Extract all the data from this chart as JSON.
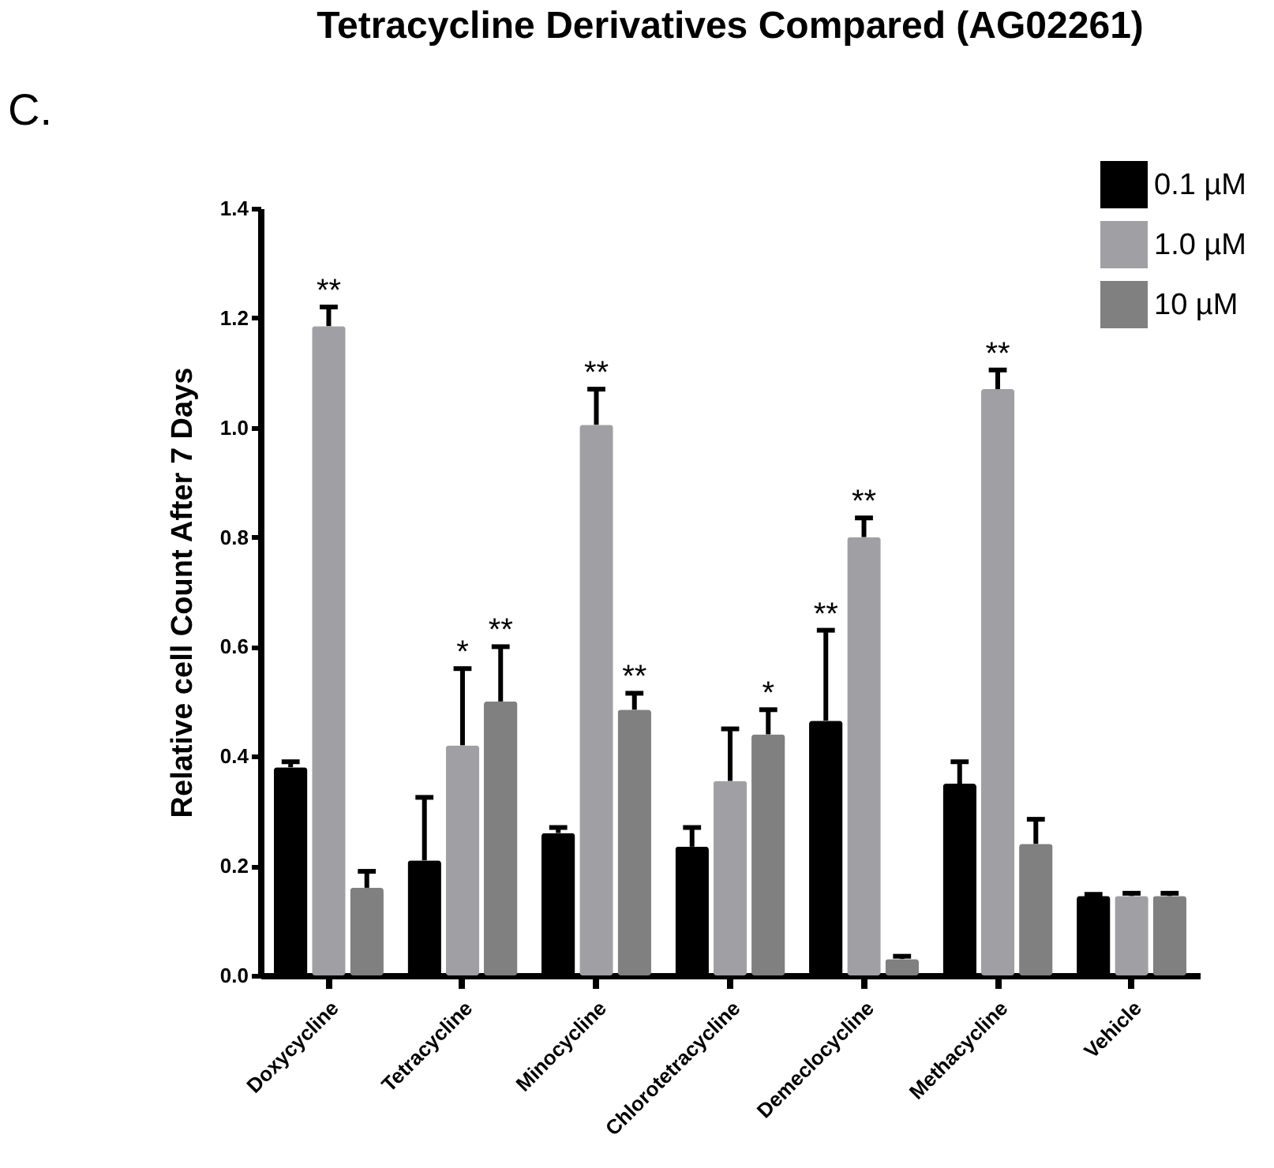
{
  "chart_data": {
    "type": "bar",
    "title": "Tetracycline Derivatives Compared (AG02261)",
    "ylabel": "Relative cell Count After 7 Days",
    "annotations": [
      "C."
    ],
    "categories": [
      "Doxycycline",
      "Tetracycline",
      "Minocycline",
      "Chlorotetracycline",
      "Demeclocycline",
      "Methacycline",
      "Vehicle"
    ],
    "series": [
      {
        "name": "0.1 µM",
        "color": "#000000",
        "values": [
          0.38,
          0.21,
          0.26,
          0.235,
          0.465,
          0.35,
          0.145
        ],
        "errors": [
          0.01,
          0.115,
          0.01,
          0.035,
          0.165,
          0.04,
          0.003
        ],
        "value_labels": [
          null,
          null,
          null,
          null,
          "**",
          null,
          null
        ]
      },
      {
        "name": "1.0 µM",
        "color": "#a0a0a4",
        "values": [
          1.185,
          0.42,
          1.005,
          0.355,
          0.8,
          1.07,
          0.145
        ],
        "errors": [
          0.035,
          0.14,
          0.065,
          0.095,
          0.035,
          0.035,
          0.005
        ],
        "value_labels": [
          "**",
          "*",
          "**",
          null,
          "**",
          "**",
          null
        ]
      },
      {
        "name": "10 µM",
        "color": "#808080",
        "values": [
          0.16,
          0.5,
          0.485,
          0.44,
          0.03,
          0.24,
          0.145
        ],
        "errors": [
          0.03,
          0.1,
          0.03,
          0.045,
          0.005,
          0.045,
          0.005
        ],
        "value_labels": [
          null,
          "**",
          "**",
          "*",
          null,
          null,
          null
        ]
      }
    ],
    "ylim": [
      0,
      1.4
    ],
    "yticks": [
      {
        "value": 0,
        "label": "0.0"
      },
      0.2,
      0.4,
      0.6,
      0.8,
      {
        "value": 1,
        "label": "1.0"
      },
      1.2,
      1.4
    ],
    "grid": false,
    "legend": "top right"
  }
}
